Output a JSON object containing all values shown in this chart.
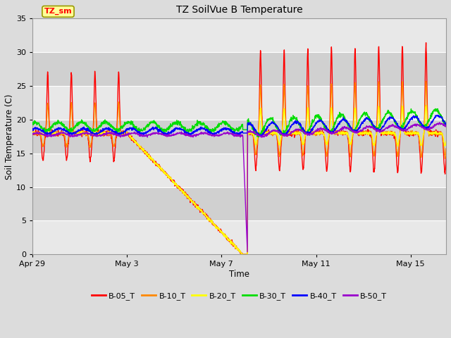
{
  "title": "TZ SoilVue B Temperature",
  "xlabel": "Time",
  "ylabel": "Soil Temperature (C)",
  "ylim": [
    0,
    35
  ],
  "background_color": "#dcdcdc",
  "plot_bg_color": "#dcdcdc",
  "grid_color": "#ffffff",
  "annotation_text": "TZ_sm",
  "annotation_bg": "#ffff99",
  "annotation_border": "#999900",
  "series_colors": {
    "B-05_T": "#ff0000",
    "B-10_T": "#ff8800",
    "B-20_T": "#ffff00",
    "B-30_T": "#00dd00",
    "B-40_T": "#0000ff",
    "B-50_T": "#9900cc"
  },
  "x_ticks_labels": [
    "Apr 29",
    "May 3",
    "May 7",
    "May 11",
    "May 15"
  ],
  "x_ticks_positions": [
    0,
    4,
    8,
    12,
    16
  ],
  "y_ticks": [
    0,
    5,
    10,
    15,
    20,
    25,
    30,
    35
  ],
  "xlim": [
    0,
    17.5
  ]
}
